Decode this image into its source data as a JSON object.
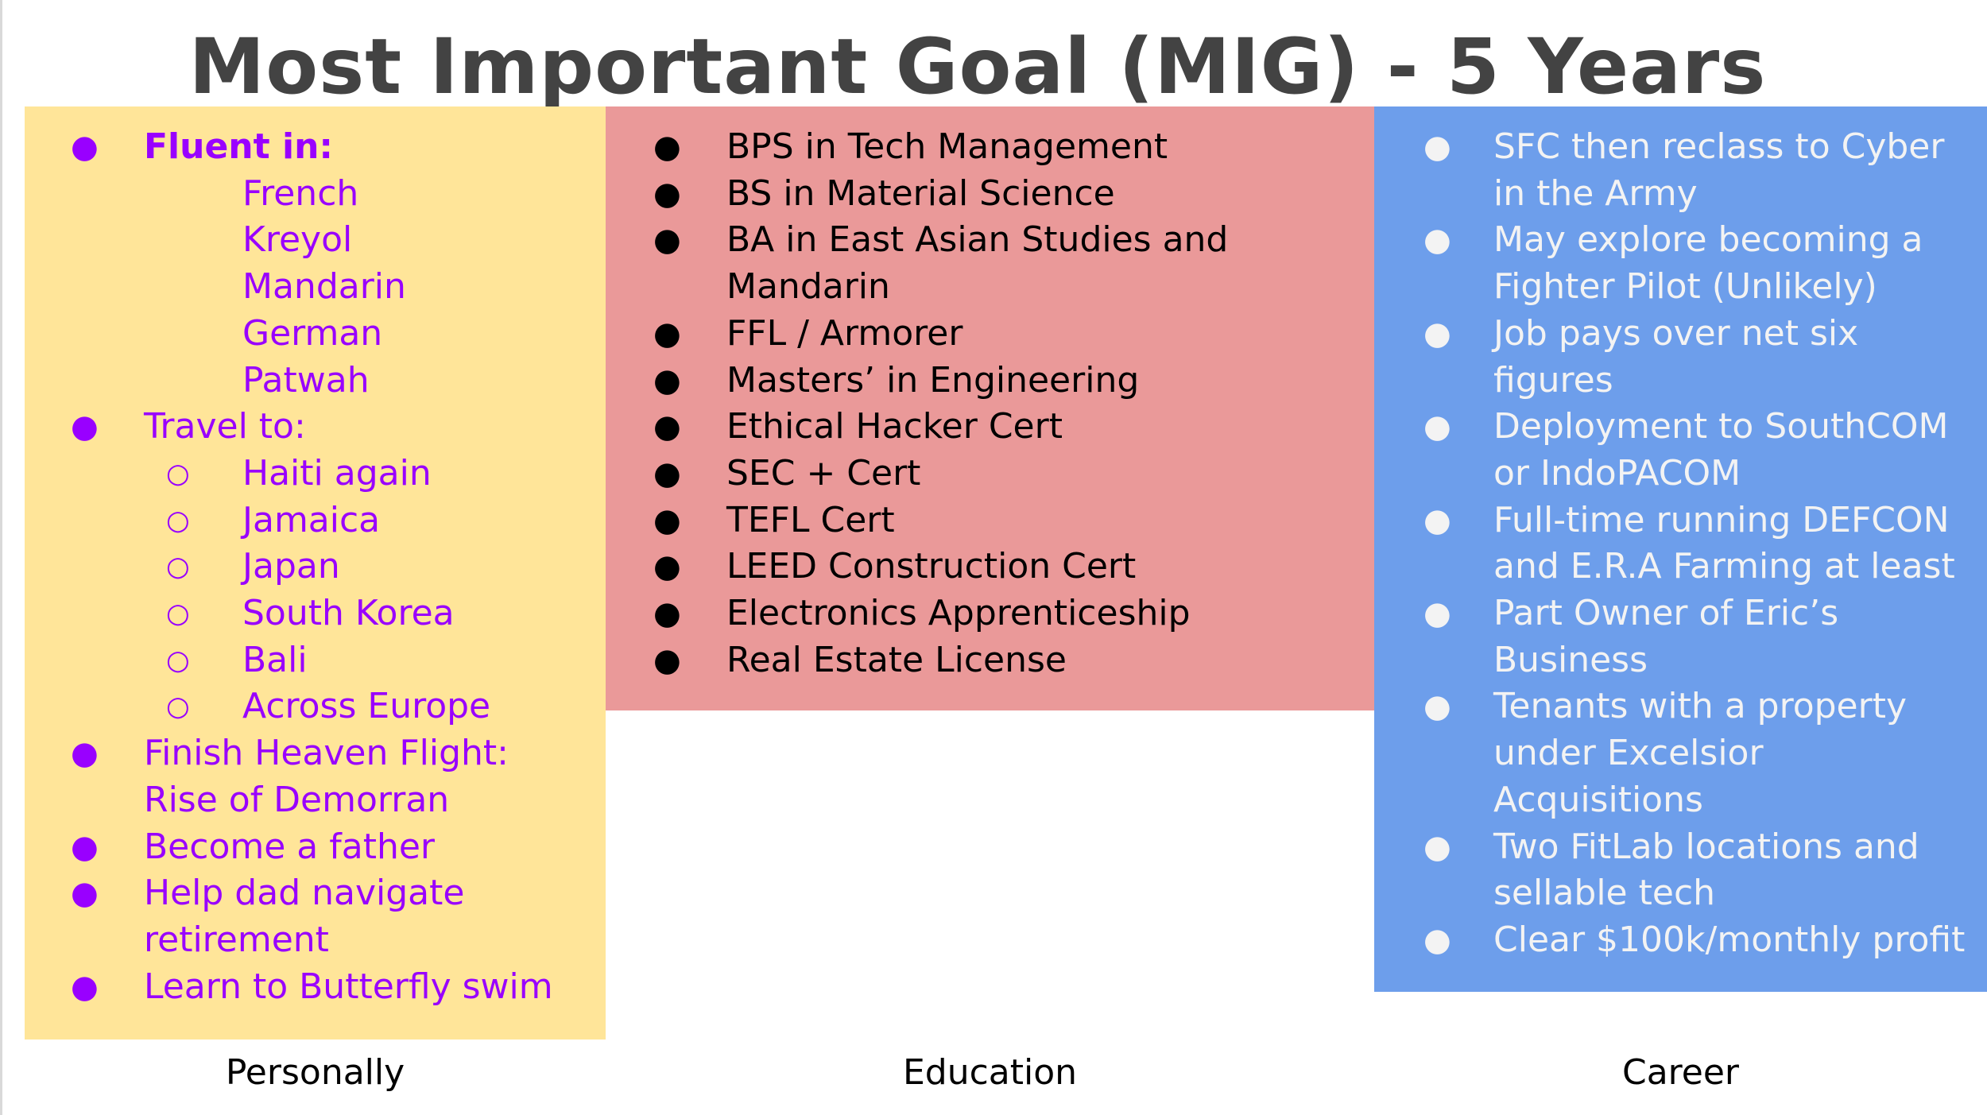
{
  "title": "Most Important Goal (MIG) - 5 Years",
  "colors": {
    "personal_bg": "#ffe599",
    "personal_text": "#9900ff",
    "education_bg": "#ea9999",
    "education_text": "#000000",
    "career_bg": "#6d9eeb",
    "career_text": "#f3f3f3",
    "title_text": "#434343"
  },
  "bullet_glyphs": {
    "filled": "●",
    "hollow": "○"
  },
  "personally": {
    "caption": "Personally",
    "lines": [
      "Fluent in:",
      "French",
      "Kreyol",
      "Mandarin",
      "German",
      "Patwah",
      "Travel to:",
      "Haiti again",
      "Jamaica",
      "Japan",
      "South Korea",
      "Bali",
      "Across Europe",
      "Finish Heaven Flight:",
      "Rise of Demorran",
      "Become a father",
      "Help dad navigate",
      "retirement",
      "Learn to Butterfly swim"
    ]
  },
  "education": {
    "caption": "Education",
    "lines": [
      "BPS in Tech Management",
      "BS in Material Science",
      "BA in East Asian Studies and",
      "Mandarin",
      "FFL / Armorer",
      "Masters’ in Engineering",
      "Ethical Hacker Cert",
      "SEC + Cert",
      "TEFL Cert",
      "LEED Construction Cert",
      "Electronics Apprenticeship",
      "Real Estate License"
    ]
  },
  "career": {
    "caption": "Career",
    "lines": [
      "SFC then reclass to Cyber",
      "in the Army",
      "May explore becoming a",
      "Fighter Pilot (Unlikely)",
      "Job pays over net six",
      "figures",
      "Deployment to SouthCOM",
      "or IndoPACOM",
      "Full-time running DEFCON",
      "and E.R.A Farming at least",
      "Part Owner of Eric’s",
      "Business",
      "Tenants with a property",
      "under Excelsior",
      "Acquisitions",
      "Two FitLab locations and",
      "sellable tech",
      "Clear $100k/monthly profit"
    ]
  }
}
